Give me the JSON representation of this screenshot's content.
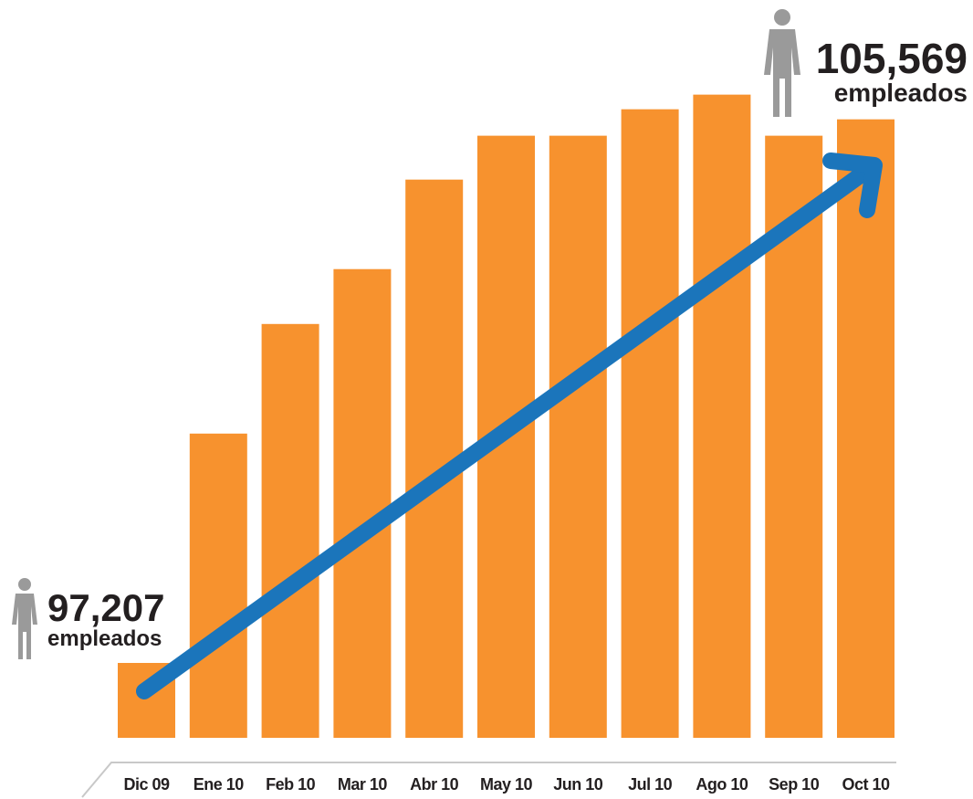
{
  "chart_data": {
    "type": "bar",
    "categories": [
      "Dic 09",
      "Ene 10",
      "Feb 10",
      "Mar 10",
      "Abr 10",
      "May 10",
      "Jun 10",
      "Jul 10",
      "Ago 10",
      "Sep 10",
      "Oct 10"
    ],
    "values": [
      97207,
      100735,
      102421,
      103265,
      104642,
      105317,
      105317,
      105724,
      105949,
      105317,
      105569
    ],
    "value_labels": [
      "97,207",
      null,
      null,
      null,
      null,
      null,
      null,
      null,
      null,
      null,
      "105,569"
    ],
    "annotations": [
      "empleados",
      "empleados"
    ],
    "color": "#f7922e",
    "ylim": [
      96055,
      106000
    ]
  }
}
